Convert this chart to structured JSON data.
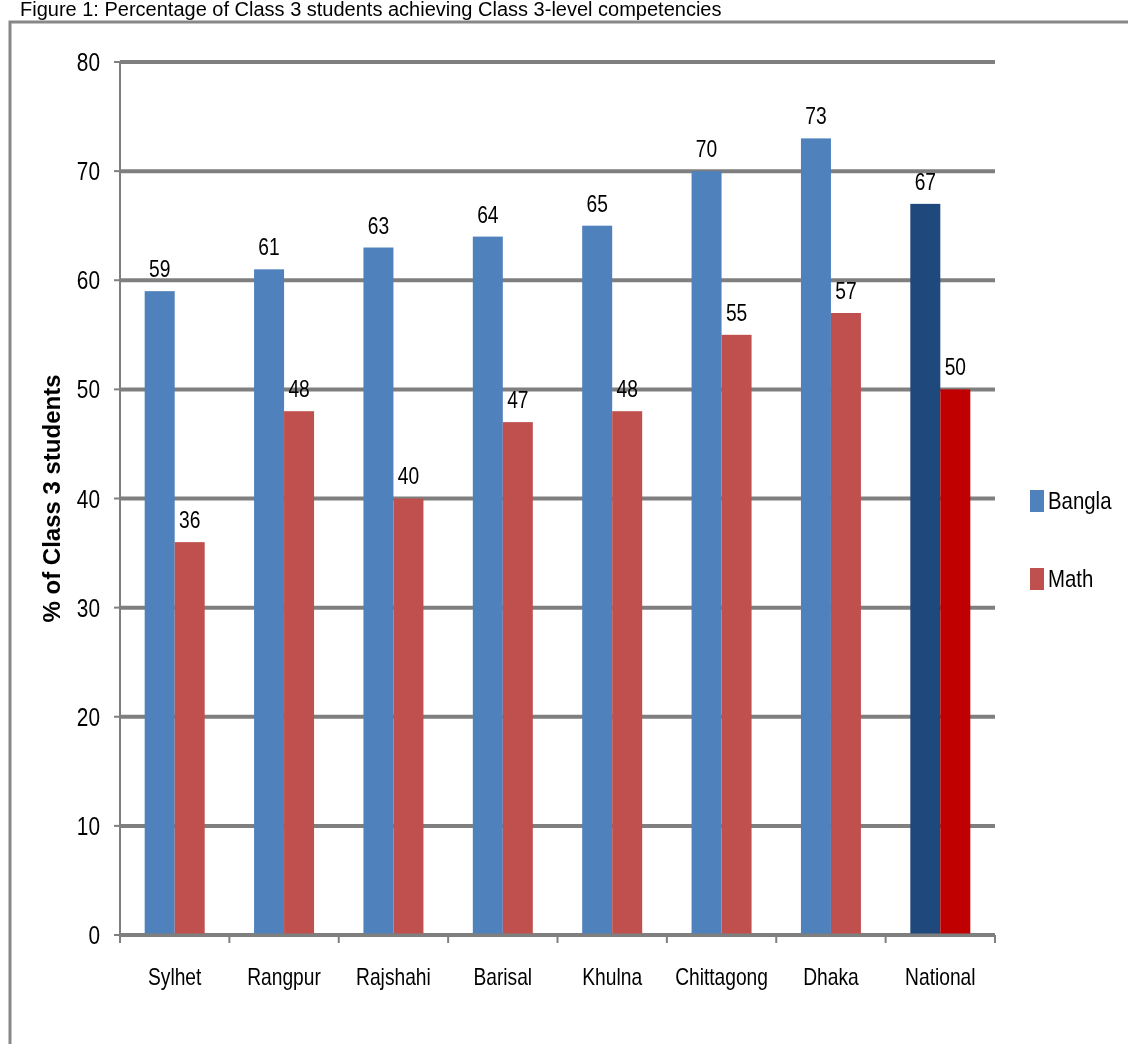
{
  "chart_data": {
    "type": "bar",
    "title": "Figure 1: Percentage of Class 3 students achieving Class 3-level competencies",
    "ylabel": "% of Class 3 students",
    "categories": [
      "Sylhet",
      "Rangpur",
      "Rajshahi",
      "Barisal",
      "Khulna",
      "Chittagong",
      "Dhaka",
      "National"
    ],
    "series": [
      {
        "name": "Bangla",
        "color": "#4f81bd",
        "colors": [
          "#4f81bd",
          "#4f81bd",
          "#4f81bd",
          "#4f81bd",
          "#4f81bd",
          "#4f81bd",
          "#4f81bd",
          "#1f497d"
        ],
        "values": [
          59,
          61,
          63,
          64,
          65,
          70,
          73,
          67
        ]
      },
      {
        "name": "Math",
        "color": "#c0504d",
        "colors": [
          "#c0504d",
          "#c0504d",
          "#c0504d",
          "#c0504d",
          "#c0504d",
          "#c0504d",
          "#c0504d",
          "#c00000"
        ],
        "values": [
          36,
          48,
          40,
          47,
          48,
          55,
          57,
          50
        ]
      }
    ],
    "ylim": [
      0,
      80
    ],
    "yticks": [
      0,
      10,
      20,
      30,
      40,
      50,
      60,
      70,
      80
    ],
    "grid": "y",
    "legend": "right",
    "data_labels": true
  }
}
